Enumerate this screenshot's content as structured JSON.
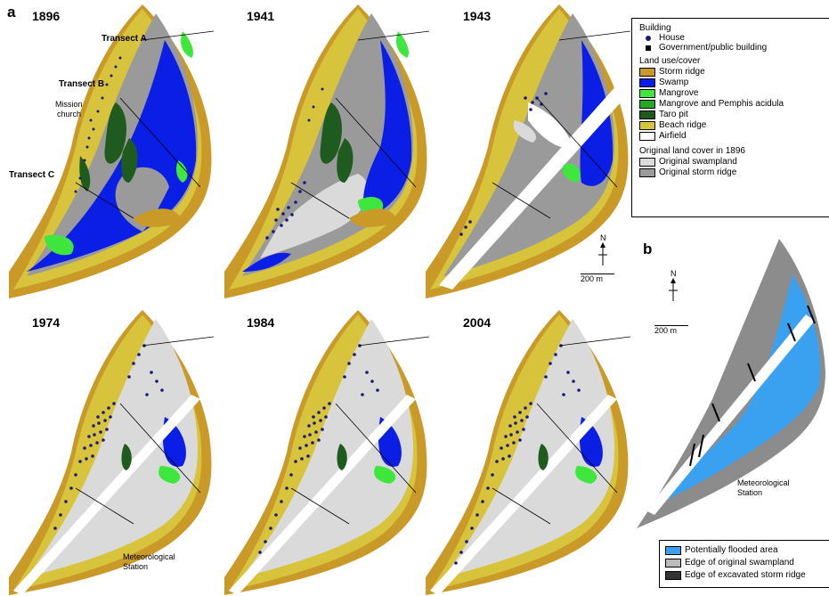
{
  "panel_a_label": "a",
  "panel_b_label": "b",
  "years": [
    "1896",
    "1941",
    "1943",
    "1974",
    "1984",
    "2004"
  ],
  "labels": {
    "transect_a": "Transect A",
    "transect_b": "Transect B",
    "transect_c": "Transect C",
    "mission_church_1": "Mission",
    "mission_church_2": "church",
    "met_station_1": "Meteorological",
    "met_station_2": "Station"
  },
  "north": "N",
  "scale_label": "200 m",
  "legend": {
    "building_title": "Building",
    "house": "House",
    "gov_building": "Government/public building",
    "landuse_title": "Land use/cover",
    "items": [
      {
        "label": "Storm ridge",
        "color": "#c99a28"
      },
      {
        "label": "Swamp",
        "color": "#0a1ee6"
      },
      {
        "label": "Mangrove",
        "color": "#3ee63e"
      },
      {
        "label": "Mangrove and Pemphis acidula",
        "color": "#22aa22"
      },
      {
        "label": "Taro pit",
        "color": "#1f5a1f"
      },
      {
        "label": "Beach ridge",
        "color": "#d8c43c"
      },
      {
        "label": "Airfield",
        "color": "#ffffff"
      }
    ],
    "original_title": "Original land cover in 1896",
    "original_items": [
      {
        "label": "Original swampland",
        "color": "#dadada"
      },
      {
        "label": "Original storm ridge",
        "color": "#9a9a9a"
      }
    ]
  },
  "legend_b": {
    "items": [
      {
        "label": "Potentially flooded area",
        "color": "#3aa0f0"
      },
      {
        "label": "Edge of original swampland",
        "color": "#bbbbbb"
      },
      {
        "label": "Edge of excavated storm ridge",
        "color": "#333333"
      }
    ]
  }
}
